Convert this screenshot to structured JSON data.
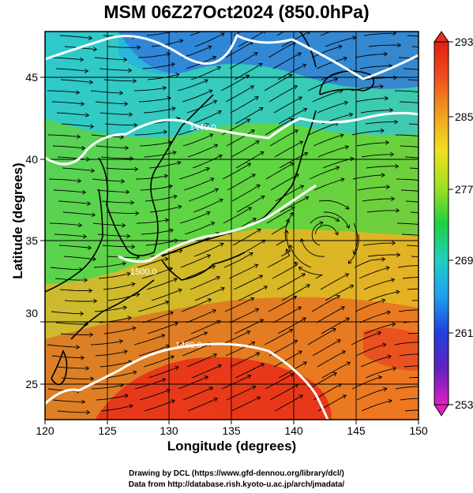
{
  "title": "MSM 06Z27Oct2024 (850.0hPa)",
  "map": {
    "xlabel": "Longitude (degrees)",
    "ylabel": "Latitude  (degrees)",
    "lon_range": [
      120,
      150
    ],
    "lat_range": [
      22.4,
      47.6
    ],
    "lon_ticks": [
      "120",
      "125",
      "130",
      "135",
      "140",
      "145",
      "150"
    ],
    "lat_ticks": [
      "25",
      "30",
      "35",
      "40",
      "45"
    ],
    "contour_labels": [
      "1440.0",
      "1480.0",
      "1500.0"
    ],
    "colors": {
      "cold": "#2a55e0",
      "cool": "#20c8e0",
      "mild": "#30d040",
      "warm": "#f0d820",
      "hot": "#f07820",
      "hottest": "#e82818",
      "contour": "#ffffff",
      "streamline": "#000000"
    }
  },
  "colorbar": {
    "min": 253,
    "max": 293,
    "tick_labels": [
      "293",
      "285",
      "277",
      "269",
      "261",
      "253"
    ],
    "stops": [
      "#e020c0",
      "#6020c0",
      "#2040e0",
      "#20a0f0",
      "#20d0c0",
      "#20d040",
      "#a0e020",
      "#f0e020",
      "#f0a020",
      "#f05020",
      "#e02010"
    ]
  },
  "credits": {
    "line1": "Drawing by DCL (https://www.gfd-dennou.org/library/dcl/)",
    "line2": "Data from http://database.rish.kyoto-u.ac.jp/arch/jmadata/"
  }
}
